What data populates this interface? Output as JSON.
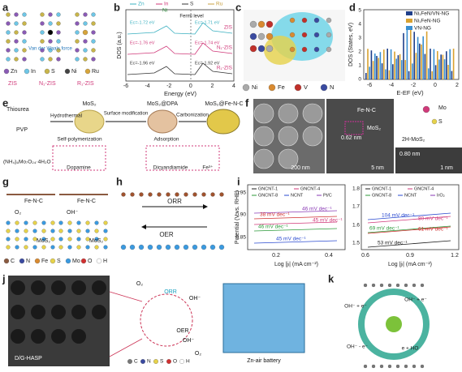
{
  "a": {
    "label": "a",
    "force": "Van der Waals force",
    "legend": [
      "Zn",
      "In",
      "S",
      "Ni",
      "Ru"
    ],
    "captions": [
      "ZIS",
      "N₁-ZIS",
      "R₁-ZIS"
    ]
  },
  "b": {
    "label": "b",
    "legend": [
      "Zn",
      "In",
      "S",
      "Ru"
    ],
    "legend_ni": "Ni",
    "fermi": "Fermi level",
    "y_label": "DOS (a.u.)",
    "x_label": "Energy (eV)",
    "x_ticks": [
      "-6",
      "-4",
      "-2",
      "0",
      "2",
      "4"
    ],
    "curves": [
      {
        "name": "ZIS",
        "e1": "Ec=-1.72 eV",
        "e2": "Ec=-1.71 eV"
      },
      {
        "name": "N₁-ZIS",
        "e1": "Ec=-1.76 eV",
        "e2": "Ec=-1.74 eV"
      },
      {
        "name": "R₁-ZIS",
        "e1": "Ec=-1.96 eV",
        "e2": "Ec=-1.92 eV"
      }
    ]
  },
  "c": {
    "label": "c",
    "legend": [
      "Ni",
      "Fe",
      "V",
      "N"
    ]
  },
  "d": {
    "label": "d",
    "legend": [
      "Ni₁FeN/VN-NG",
      "Ni₁FeN-NG",
      "VN-NG"
    ],
    "y_label": "DOS (States, eV)",
    "x_label": "E-EF (eV)",
    "x_ticks": [
      "-6",
      "-4",
      "-2",
      "0",
      "2"
    ],
    "y_ticks": [
      "0",
      "1",
      "2",
      "3",
      "4",
      "5"
    ]
  },
  "e": {
    "label": "e",
    "reagents": [
      "Thiourea",
      "PVP",
      "(NH₄)₆Mo₇O₂₄·4H₂O"
    ],
    "steps": [
      "Hydrothermal",
      "Surface modification",
      "Carbonization",
      "Self-polymerization",
      "Adsorption"
    ],
    "products": [
      "MoS₂",
      "MoS₂@DPA",
      "MoS₂@Fe-N-C"
    ],
    "molecules": [
      "Dopamine",
      "Dicyandiamide",
      "Fe³⁺"
    ]
  },
  "f": {
    "label": "f",
    "texts": [
      "200 nm",
      "0.62 nm",
      "MoS₂",
      "Fe-N-C",
      "5 nm",
      "2H-MoS₂",
      "Mo",
      "S",
      "0.80 nm",
      "1 nm"
    ]
  },
  "g": {
    "label": "g",
    "texts": [
      "Fe-N-C",
      "Fe-N-C",
      "O₂",
      "OH⁻",
      "MoS₂",
      "MoS₂"
    ],
    "legend": [
      "C",
      "N",
      "Fe",
      "S",
      "Mo",
      "O",
      "H"
    ]
  },
  "h": {
    "label": "h",
    "texts": [
      "ORR",
      "OER"
    ]
  },
  "i": {
    "label": "i",
    "y_label": "Potential (V vs. RHE)",
    "left": {
      "legend": [
        "GNCNT-1",
        "GNCNT-4",
        "GNCNT-8",
        "NCNT",
        "Pt/C"
      ],
      "slopes": [
        "46 mV dec⁻¹",
        "38 mV dec⁻¹",
        "45 mV dec⁻¹",
        "46 mV dec⁻¹",
        "45 mV dec⁻¹"
      ],
      "x_label": "Log |jₗ| (mA cm⁻²)",
      "x_ticks": [
        "0.2",
        "0.4"
      ],
      "y_ticks": [
        "0.95",
        "0.90",
        "0.85"
      ]
    },
    "right": {
      "legend": [
        "GNCNT-1",
        "GNCNT-4",
        "GNCNT-8",
        "NCNT",
        "IrO₂"
      ],
      "slopes": [
        "104 mV dec⁻¹",
        "80 mV dec⁻¹",
        "69 mV dec⁻¹",
        "61 mV dec⁻¹",
        "53 mV dec⁻¹"
      ],
      "x_label": "Log |jₗ| (mA cm⁻²)",
      "x_ticks": [
        "0.6",
        "0.9",
        "1.2"
      ],
      "y_ticks": [
        "1.8",
        "1.7",
        "1.6",
        "1.5"
      ]
    }
  },
  "j": {
    "label": "j",
    "texts": [
      "D/G-HASP",
      "ORR",
      "OER",
      "O₂",
      "OH⁻",
      "OH⁻",
      "O₂",
      "Zn-air battery"
    ],
    "legend": [
      "C",
      "N",
      "S",
      "O",
      "H"
    ]
  },
  "k": {
    "label": "k",
    "texts": [
      "OH⁻ + e⁻",
      "OH⁻ + e⁻",
      "OH⁻ - e⁻",
      "e + HO"
    ]
  }
}
